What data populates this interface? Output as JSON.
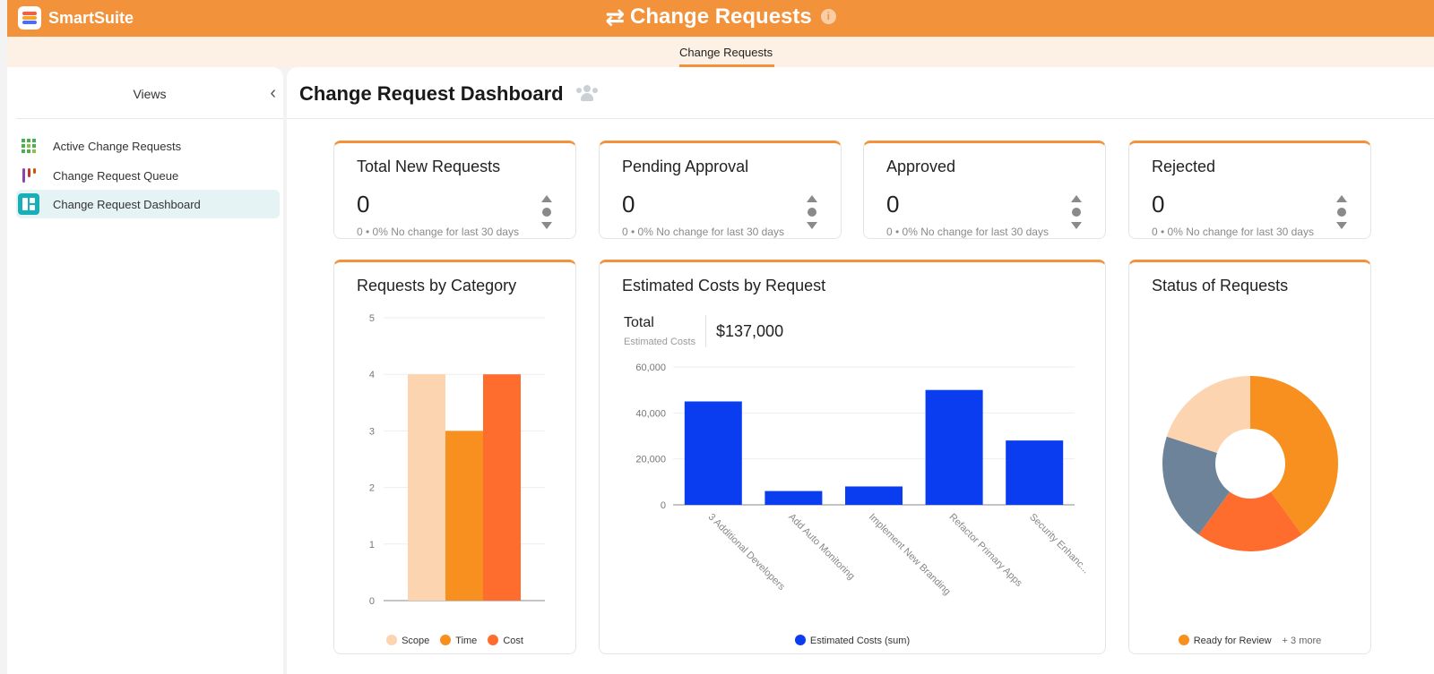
{
  "app": {
    "brand": "SmartSuite",
    "title": "Change Requests",
    "title_icon": "swap-arrows-icon"
  },
  "subtabs": [
    {
      "label": "Change Requests",
      "active": true
    }
  ],
  "sidebar": {
    "title": "Views",
    "items": [
      {
        "label": "Active Change Requests",
        "icon": "grid-view-icon",
        "active": false
      },
      {
        "label": "Change Request Queue",
        "icon": "kanban-view-icon",
        "active": false
      },
      {
        "label": "Change Request Dashboard",
        "icon": "dashboard-view-icon",
        "active": true
      }
    ]
  },
  "page": {
    "title": "Change Request Dashboard"
  },
  "stats": [
    {
      "title": "Total New Requests",
      "value": "0",
      "sub": "0 • 0%  No change for last 30 days"
    },
    {
      "title": "Pending Approval",
      "value": "0",
      "sub": "0 • 0%  No change for last 30 days"
    },
    {
      "title": "Approved",
      "value": "0",
      "sub": "0 • 0%  No change for last 30 days"
    },
    {
      "title": "Rejected",
      "value": "0",
      "sub": "0 • 0%  No change for last 30 days"
    }
  ],
  "charts": {
    "category": {
      "title": "Requests by Category"
    },
    "costs": {
      "title": "Estimated Costs by Request",
      "total_label": "Total",
      "total_sub": "Estimated Costs",
      "total_value": "$137,000"
    },
    "status": {
      "title": "Status of Requests",
      "legend_more": "3 more"
    }
  },
  "chart_data": [
    {
      "type": "bar",
      "title": "Requests by Category",
      "series": [
        {
          "name": "Scope",
          "values": [
            4
          ],
          "color": "#fdd4b0"
        },
        {
          "name": "Time",
          "values": [
            3
          ],
          "color": "#f7901e"
        },
        {
          "name": "Cost",
          "values": [
            4
          ],
          "color": "#ff6d2e"
        }
      ],
      "ylim": [
        0,
        5
      ],
      "yticks": [
        "0",
        "1",
        "2",
        "3",
        "4",
        "5"
      ],
      "grid": true,
      "legend": "bottom"
    },
    {
      "type": "bar",
      "title": "Estimated Costs by Request",
      "categories": [
        "3 Additional Developers",
        "Add Auto Monitoring",
        "Implement New Branding",
        "Refactor Primary Apps",
        "Security Enhanc..."
      ],
      "series": [
        {
          "name": "Estimated Costs (sum)",
          "values": [
            45000,
            6000,
            8000,
            50000,
            28000
          ],
          "color": "#0a3cf0"
        }
      ],
      "ylim": [
        0,
        60000
      ],
      "yticks": [
        "0",
        "20,000",
        "40,000",
        "60,000"
      ],
      "grid": true,
      "legend": "bottom"
    },
    {
      "type": "pie",
      "title": "Status of Requests",
      "donut": true,
      "series": [
        {
          "values": [
            40,
            20,
            20,
            20
          ],
          "colors": [
            "#f7901e",
            "#ff6d2e",
            "#6d839a",
            "#fdd4b0"
          ]
        }
      ],
      "legend_visible": [
        {
          "name": "Ready for Review",
          "color": "#f7901e"
        }
      ],
      "legend": "bottom"
    }
  ]
}
